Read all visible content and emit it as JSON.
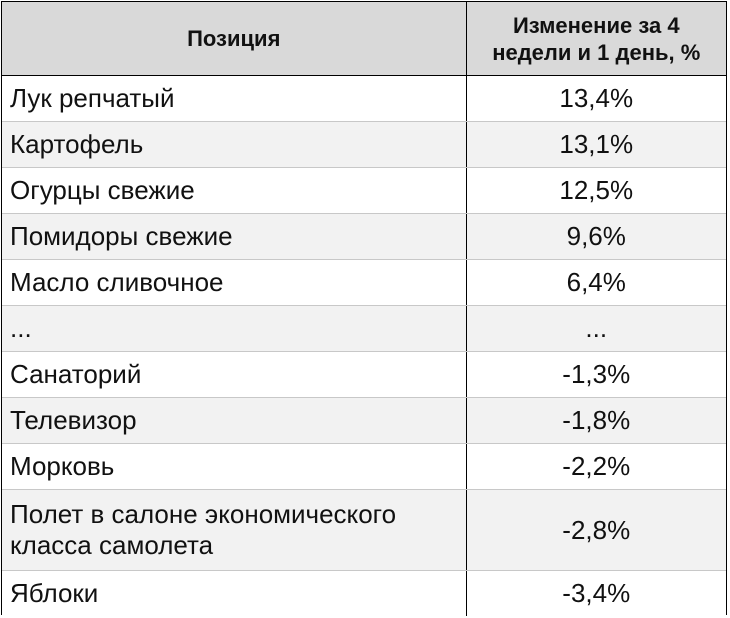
{
  "chart_data": {
    "type": "table",
    "columns": [
      "Позиция",
      "Изменение за 4 недели и 1 день, %"
    ],
    "rows": [
      {
        "name": "Лук репчатый",
        "value": "13,4%"
      },
      {
        "name": "Картофель",
        "value": "13,1%"
      },
      {
        "name": "Огурцы свежие",
        "value": "12,5%"
      },
      {
        "name": "Помидоры свежие",
        "value": "9,6%"
      },
      {
        "name": "Масло сливочное",
        "value": "6,4%"
      },
      {
        "name": "...",
        "value": "..."
      },
      {
        "name": "Санаторий",
        "value": "-1,3%"
      },
      {
        "name": "Телевизор",
        "value": "-1,8%"
      },
      {
        "name": "Морковь",
        "value": "-2,2%"
      },
      {
        "name": "Полет в салоне экономического класса самолета",
        "value": "-2,8%"
      },
      {
        "name": "Яблоки",
        "value": "-3,4%"
      }
    ],
    "colors": {
      "header_bg": "#d9d9d9",
      "row_alt_bg": "#f2f2f2",
      "row_bg": "#ffffff",
      "border": "#000000"
    }
  }
}
